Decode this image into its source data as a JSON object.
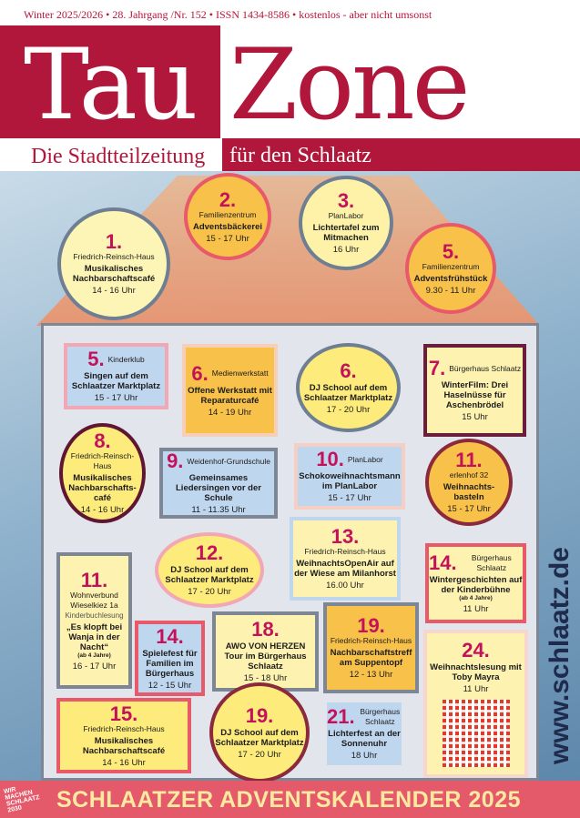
{
  "header": {
    "topline": "Winter 2025/2026  •  28. Jahrgang /Nr. 152  •  ISSN 1434-8586  •  kostenlos - aber nicht umsonst",
    "title_left": "Tau",
    "title_right": "Zone",
    "subtitle_left": "Die Stadtteilzeitung",
    "subtitle_right": "für den Schlaatz"
  },
  "colors": {
    "brand_red": "#b0173a",
    "footer_pink": "#e55a6b",
    "footer_text": "#fbeaa0",
    "number_magenta": "#c4125a"
  },
  "events": [
    {
      "num": "1.",
      "venue": "Friedrich-Reinsch-Haus",
      "title": "Musikalisches Nachbarschaftscafé",
      "time": "14 - 16 Uhr",
      "shape": "circle",
      "fill": "#fdf5b5",
      "border": "#6f7f93"
    },
    {
      "num": "2.",
      "venue": "Familienzentrum",
      "title": "Adventsbäckerei",
      "time": "15 - 17 Uhr",
      "shape": "circle",
      "fill": "#f8c14a",
      "border": "#e85a6a"
    },
    {
      "num": "3.",
      "venue": "PlanLabor",
      "title": "Lichtertafel zum Mitmachen",
      "time": "16 Uhr",
      "shape": "circle",
      "fill": "#fdf2a8",
      "border": "#6f7f93"
    },
    {
      "num": "5.",
      "venue": "Familienzentrum",
      "title": "Adventsfrühstück",
      "time": "9.30 - 11 Uhr",
      "shape": "circle",
      "fill": "#f8c14a",
      "border": "#e85a6a"
    },
    {
      "num": "5.",
      "venue": "Kinderklub",
      "title": "Singen auf dem Schlaatzer Marktplatz",
      "time": "15 - 17 Uhr",
      "shape": "rect",
      "fill": "#bfd6ef",
      "border": "#f2a7b4"
    },
    {
      "num": "6.",
      "venue": "Medienwerkstatt",
      "title": "Offene Werkstatt mit Reparaturcafé",
      "time": "14 - 19 Uhr",
      "shape": "rect",
      "fill": "#f8c14a",
      "border": "#f6cfb8"
    },
    {
      "num": "6.",
      "venue": "",
      "title": "DJ School auf dem Schlaatzer Marktplatz",
      "time": "17 - 20 Uhr",
      "shape": "circle",
      "fill": "#fdeb7c",
      "border": "#6f7f93"
    },
    {
      "num": "7.",
      "venue": "Bürgerhaus Schlaatz",
      "title": "WinterFilm: Drei Haselnüsse für Aschenbrödel",
      "time": "15 Uhr",
      "shape": "rect",
      "fill": "#fdf2b0",
      "border": "#6b1d3c"
    },
    {
      "num": "8.",
      "venue": "Friedrich-Reinsch-Haus",
      "title": "Musikalisches Nachbarschafts-café",
      "time": "14 - 16 Uhr",
      "shape": "circle",
      "fill": "#fdeb7c",
      "border": "#5e1632"
    },
    {
      "num": "9.",
      "venue": "Weidenhof-Grundschule",
      "title": "Gemeinsames Liedersingen vor der Schule",
      "time": "11 - 11.35 Uhr",
      "shape": "rect",
      "fill": "#bfd6ef",
      "border": "#7c8694"
    },
    {
      "num": "10.",
      "venue": "PlanLabor",
      "title": "Schokoweihnachtsmann im PlanLabor",
      "time": "15 - 17 Uhr",
      "shape": "rect",
      "fill": "#bfd6ef",
      "border": "#f6cfc4"
    },
    {
      "num": "11.",
      "venue": "erlenhof 32",
      "title": "Weihnachts-basteln",
      "time": "15 - 17 Uhr",
      "shape": "circle",
      "fill": "#f8c14a",
      "border": "#8b2a3c"
    },
    {
      "num": "11.",
      "venue": "Wohnverbund Wieselkiez 1a",
      "note2": "Kinderbuchlesung",
      "title": "„Es klopft bei Wanja in der Nacht“",
      "note": "(ab 4 Jahre)",
      "time": "16 - 17 Uhr",
      "shape": "rect",
      "fill": "#fdf2b0",
      "border": "#7c8694"
    },
    {
      "num": "12.",
      "venue": "",
      "title": "DJ School auf dem Schlaatzer Marktplatz",
      "time": "17 - 20 Uhr",
      "shape": "circle",
      "fill": "#fdeb7c",
      "border": "#f2a7b4"
    },
    {
      "num": "13.",
      "venue": "Friedrich-Reinsch-Haus",
      "title": "WeihnachtsOpenAir auf der Wiese am Milanhorst",
      "time": "16.00 Uhr",
      "shape": "rect",
      "fill": "#fdf2b0",
      "border": "#bfd6ef"
    },
    {
      "num": "14.",
      "venue": "Bürgerhaus Schlaatz",
      "title": "Wintergeschichten auf der Kinderbühne",
      "note": "(ab 4 Jahre)",
      "time": "11 Uhr",
      "shape": "rect",
      "fill": "#fdf2b0",
      "border": "#e85a6a"
    },
    {
      "num": "14.",
      "venue": "",
      "title": "Spielefest für Familien im Bürgerhaus",
      "time": "12 - 15 Uhr",
      "shape": "rect",
      "fill": "#bfd6ef",
      "border": "#e85a6a"
    },
    {
      "num": "18.",
      "venue": "",
      "title": "AWO VON HERZEN Tour im Bürgerhaus Schlaatz",
      "time": "15 - 18 Uhr",
      "shape": "rect",
      "fill": "#fdf2b0",
      "border": "#7c8694"
    },
    {
      "num": "19.",
      "venue": "Friedrich-Reinsch-Haus",
      "title": "Nachbarschaftstreff am Suppentopf",
      "time": "12 - 13 Uhr",
      "shape": "rect",
      "fill": "#f8c14a",
      "border": "#7c8694"
    },
    {
      "num": "24.",
      "venue": "",
      "title": "Weihnachtslesung mit Toby Mayra",
      "time": "11 Uhr",
      "shape": "rect",
      "fill": "#fdf2b0",
      "border": "#f6d6cf",
      "qr": true
    },
    {
      "num": "15.",
      "venue": "Friedrich-Reinsch-Haus",
      "title": "Musikalisches Nachbarschaftscafé",
      "time": "14 - 16 Uhr",
      "shape": "rect",
      "fill": "#fdeb7c",
      "border": "#e85a6a"
    },
    {
      "num": "19.",
      "venue": "",
      "title": "DJ School auf dem Schlaatzer Marktplatz",
      "time": "17 - 20 Uhr",
      "shape": "circle",
      "fill": "#fdeb7c",
      "border": "#8b2a3c"
    },
    {
      "num": "21.",
      "venue": "Bürgerhaus Schlaatz",
      "title": "Lichterfest an der Sonnenuhr",
      "time": "18 Uhr",
      "shape": "rect",
      "fill": "#bfd6ef",
      "border": "#e3e5ec"
    }
  ],
  "website": "www.schlaatz.de",
  "footer": {
    "title": "SCHLAATZER ADVENTSKALENDER 2025",
    "logo_text": "WIR MACHEN SCHLAATZ 2030"
  }
}
